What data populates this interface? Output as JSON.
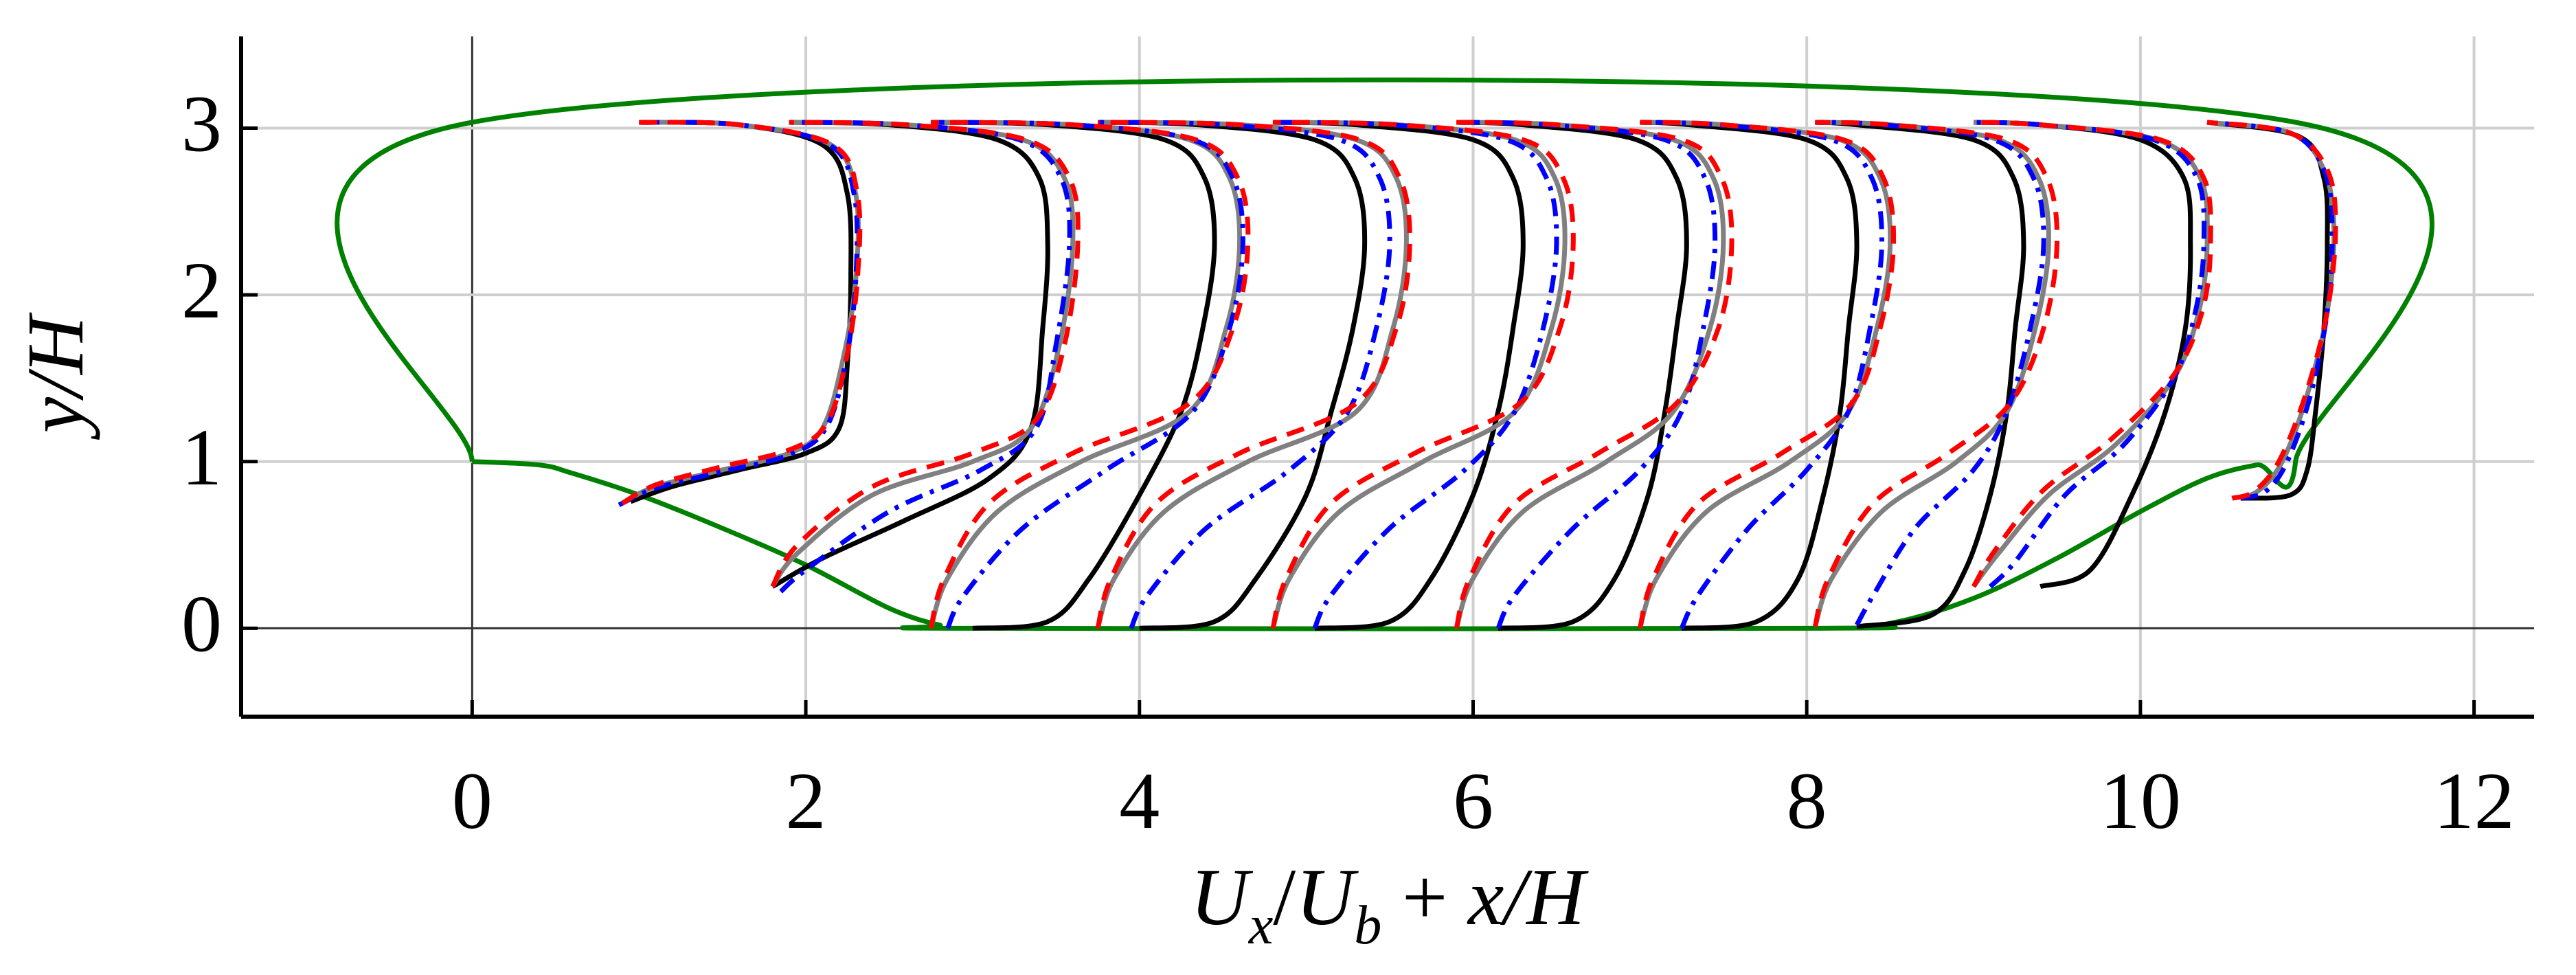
{
  "chart_data": {
    "type": "line",
    "xlabel": [
      {
        "text": "U",
        "italic": true
      },
      {
        "text": "x",
        "italic": true,
        "sub": true
      },
      {
        "text": "/",
        "italic": false
      },
      {
        "text": "U",
        "italic": true
      },
      {
        "text": "b",
        "italic": true,
        "sub": true
      },
      {
        "text": " + ",
        "italic": false
      },
      {
        "text": "x/H",
        "italic": true
      }
    ],
    "ylabel": "y/H",
    "xlim": [
      -1.385,
      12.36
    ],
    "ylim": [
      -0.53,
      3.55
    ],
    "xticks": [
      0,
      2,
      4,
      6,
      8,
      10,
      12
    ],
    "yticks": [
      0,
      1,
      2,
      3
    ],
    "grid": true,
    "zero_lines": true,
    "series": [
      {
        "color": "#008000",
        "style": "solid",
        "x": [
          0,
          0,
          10.93,
          10.93,
          10.7,
          10.4,
          10,
          9.5,
          9,
          8.5,
          8,
          3,
          2.8,
          2.5,
          2,
          1.5,
          1,
          0.6,
          0.4,
          0
        ],
        "values": [
          1,
          3.035,
          3.035,
          1,
          0.98,
          0.9,
          0.7,
          0.42,
          0.18,
          0.03,
          0,
          0,
          0.02,
          0.12,
          0.38,
          0.6,
          0.8,
          0.93,
          0.98,
          1
        ]
      },
      {
        "color": "#000000",
        "style": "solid",
        "x": [
          0.95,
          1.2,
          1.6,
          2.0,
          2.2,
          2.25,
          2.27,
          2.25,
          2.1,
          1.6,
          1.0,
          null,
          1.8,
          2.1,
          2.6,
          3.1,
          3.35,
          3.42,
          3.45,
          3.4,
          3.15,
          2.5,
          1.9,
          null,
          3.0,
          3.45,
          3.7,
          4.0,
          4.25,
          4.38,
          4.45,
          4.39,
          4.15,
          3.45,
          2.75,
          null,
          4.0,
          4.45,
          4.7,
          5.0,
          5.15,
          5.28,
          5.35,
          5.29,
          5.05,
          4.35,
          3.75,
          null,
          5.05,
          5.5,
          5.75,
          6.0,
          6.15,
          6.24,
          6.3,
          6.24,
          6.0,
          5.3,
          4.8,
          null,
          6.15,
          6.6,
          6.85,
          7.05,
          7.15,
          7.22,
          7.28,
          7.22,
          6.98,
          6.3,
          5.9,
          null,
          7.25,
          7.7,
          7.95,
          8.1,
          8.2,
          8.25,
          8.3,
          8.24,
          8.0,
          7.3,
          7.0,
          null,
          8.3,
          8.75,
          8.95,
          9.1,
          9.2,
          9.25,
          9.3,
          9.24,
          9.0,
          8.3,
          8.05,
          null,
          9.4,
          9.7,
          9.95,
          10.15,
          10.27,
          10.3,
          10.26,
          10.0,
          9.4,
          9.0,
          null,
          10.6,
          10.9,
          11.0,
          11.05,
          11.1,
          11.12,
          11.1,
          10.95,
          10.4
        ],
        "values": [
          0.76,
          0.85,
          0.95,
          1.05,
          1.2,
          1.6,
          2.1,
          2.6,
          2.9,
          3.02,
          3.035,
          null,
          0.25,
          0.42,
          0.65,
          0.9,
          1.2,
          1.8,
          2.3,
          2.7,
          2.93,
          3.02,
          3.035,
          null,
          0,
          0.04,
          0.3,
          0.8,
          1.3,
          1.8,
          2.3,
          2.7,
          2.93,
          3.02,
          3.035,
          null,
          0,
          0.04,
          0.3,
          0.8,
          1.3,
          1.8,
          2.3,
          2.7,
          2.93,
          3.02,
          3.035,
          null,
          0,
          0.04,
          0.3,
          0.8,
          1.3,
          1.8,
          2.3,
          2.7,
          2.93,
          3.02,
          3.035,
          null,
          0,
          0.04,
          0.3,
          0.8,
          1.3,
          1.8,
          2.3,
          2.7,
          2.93,
          3.02,
          3.035,
          null,
          0,
          0.04,
          0.3,
          0.8,
          1.3,
          1.8,
          2.3,
          2.7,
          2.93,
          3.02,
          3.035,
          null,
          0.01,
          0.08,
          0.35,
          0.8,
          1.3,
          1.8,
          2.3,
          2.7,
          2.93,
          3.02,
          3.035,
          null,
          0.25,
          0.35,
          0.8,
          1.3,
          1.8,
          2.3,
          2.7,
          2.93,
          3.02,
          3.035,
          null,
          0.78,
          0.8,
          0.95,
          1.3,
          1.8,
          2.3,
          2.7,
          2.95,
          3.035
        ]
      },
      {
        "color": "#808080",
        "style": "solid",
        "x": [
          0.9,
          1.1,
          1.5,
          1.9,
          2.1,
          2.22,
          2.3,
          2.3,
          2.15,
          1.6,
          1.0,
          null,
          1.8,
          1.95,
          2.4,
          3.0,
          3.35,
          3.52,
          3.6,
          3.55,
          3.3,
          2.6,
          1.9,
          null,
          2.75,
          2.85,
          3.15,
          3.65,
          4.3,
          4.52,
          4.6,
          4.54,
          4.3,
          3.6,
          2.75,
          null,
          3.75,
          3.85,
          4.15,
          4.65,
          5.3,
          5.52,
          5.6,
          5.54,
          5.3,
          4.6,
          3.75,
          null,
          4.8,
          4.9,
          5.2,
          5.7,
          6.25,
          6.47,
          6.55,
          6.49,
          6.25,
          5.55,
          4.8,
          null,
          5.9,
          6.0,
          6.3,
          6.8,
          7.2,
          7.42,
          7.5,
          7.44,
          7.2,
          6.5,
          5.9,
          null,
          7.0,
          7.1,
          7.4,
          7.9,
          8.25,
          8.42,
          8.5,
          8.44,
          8.2,
          7.5,
          7.0,
          null,
          8.05,
          8.15,
          8.45,
          8.9,
          9.2,
          9.37,
          9.45,
          9.39,
          9.15,
          8.5,
          8.05,
          null,
          9.0,
          9.15,
          9.45,
          9.85,
          10.2,
          10.35,
          10.4,
          10.36,
          10.1,
          9.4,
          9.0,
          null,
          10.55,
          10.7,
          10.85,
          11.0,
          11.12,
          11.16,
          11.1,
          10.9,
          10.4
        ],
        "values": [
          0.75,
          0.85,
          0.95,
          1.05,
          1.2,
          1.6,
          2.1,
          2.6,
          2.9,
          3.02,
          3.035,
          null,
          0.25,
          0.45,
          0.8,
          1.0,
          1.2,
          1.7,
          2.3,
          2.7,
          2.93,
          3.02,
          3.035,
          null,
          0,
          0.3,
          0.7,
          1.0,
          1.3,
          1.8,
          2.3,
          2.7,
          2.93,
          3.02,
          3.035,
          null,
          0,
          0.3,
          0.7,
          1.0,
          1.3,
          1.8,
          2.3,
          2.7,
          2.93,
          3.02,
          3.035,
          null,
          0,
          0.3,
          0.7,
          1.0,
          1.3,
          1.8,
          2.3,
          2.7,
          2.93,
          3.02,
          3.035,
          null,
          0,
          0.3,
          0.7,
          1.0,
          1.3,
          1.8,
          2.3,
          2.7,
          2.93,
          3.02,
          3.035,
          null,
          0,
          0.3,
          0.7,
          1.0,
          1.3,
          1.8,
          2.3,
          2.7,
          2.93,
          3.02,
          3.035,
          null,
          0.01,
          0.3,
          0.7,
          1.0,
          1.3,
          1.8,
          2.3,
          2.7,
          2.93,
          3.02,
          3.035,
          null,
          0.25,
          0.45,
          0.8,
          1.1,
          1.5,
          1.9,
          2.3,
          2.7,
          2.93,
          3.02,
          3.035,
          null,
          0.78,
          0.82,
          1.0,
          1.4,
          1.9,
          2.4,
          2.75,
          2.97,
          3.035
        ]
      },
      {
        "color": "#0000ff",
        "style": "dashdot",
        "x": [
          0.88,
          1.1,
          1.5,
          1.9,
          2.12,
          2.24,
          2.3,
          2.29,
          2.14,
          1.6,
          1.0,
          null,
          1.85,
          2.0,
          2.5,
          3.05,
          3.38,
          3.5,
          3.58,
          3.53,
          3.28,
          2.6,
          1.9,
          null,
          2.85,
          2.95,
          3.3,
          3.8,
          4.32,
          4.54,
          4.62,
          4.56,
          4.32,
          3.6,
          2.75,
          null,
          3.95,
          4.05,
          4.4,
          4.9,
          5.25,
          5.42,
          5.5,
          5.44,
          5.2,
          4.5,
          3.75,
          null,
          5.05,
          5.15,
          5.5,
          5.95,
          6.25,
          6.42,
          6.5,
          6.44,
          6.2,
          5.5,
          4.8,
          null,
          6.15,
          6.25,
          6.6,
          7.0,
          7.25,
          7.38,
          7.45,
          7.39,
          7.15,
          6.45,
          5.9,
          null,
          7.25,
          7.35,
          7.65,
          8.0,
          8.25,
          8.38,
          8.45,
          8.39,
          8.15,
          7.45,
          7.0,
          null,
          8.3,
          8.4,
          8.65,
          9.0,
          9.2,
          9.34,
          9.42,
          9.36,
          9.12,
          8.45,
          8.05,
          null,
          9.1,
          9.25,
          9.55,
          9.9,
          10.2,
          10.33,
          10.38,
          10.34,
          10.08,
          9.4,
          9.0,
          null,
          10.6,
          10.75,
          10.88,
          11.02,
          11.12,
          11.15,
          11.1,
          10.9,
          10.4
        ],
        "values": [
          0.74,
          0.84,
          0.94,
          1.04,
          1.2,
          1.6,
          2.1,
          2.6,
          2.9,
          3.02,
          3.035,
          null,
          0.22,
          0.35,
          0.7,
          0.95,
          1.2,
          1.7,
          2.3,
          2.7,
          2.93,
          3.02,
          3.035,
          null,
          0,
          0.2,
          0.6,
          0.95,
          1.3,
          1.8,
          2.3,
          2.7,
          2.93,
          3.02,
          3.035,
          null,
          0,
          0.2,
          0.6,
          0.95,
          1.3,
          1.8,
          2.3,
          2.7,
          2.93,
          3.02,
          3.035,
          null,
          0,
          0.2,
          0.6,
          0.95,
          1.3,
          1.8,
          2.3,
          2.7,
          2.93,
          3.02,
          3.035,
          null,
          0,
          0.2,
          0.6,
          0.95,
          1.3,
          1.8,
          2.3,
          2.7,
          2.93,
          3.02,
          3.035,
          null,
          0,
          0.2,
          0.6,
          0.95,
          1.3,
          1.8,
          2.3,
          2.7,
          2.93,
          3.02,
          3.035,
          null,
          0.02,
          0.2,
          0.6,
          0.95,
          1.3,
          1.8,
          2.3,
          2.7,
          2.93,
          3.02,
          3.035,
          null,
          0.25,
          0.4,
          0.8,
          1.1,
          1.5,
          1.9,
          2.3,
          2.7,
          2.93,
          3.02,
          3.035,
          null,
          0.78,
          0.82,
          1.0,
          1.4,
          1.9,
          2.4,
          2.75,
          2.97,
          3.035
        ]
      },
      {
        "color": "#ff0000",
        "style": "dashed",
        "x": [
          0.9,
          1.1,
          1.5,
          1.9,
          2.12,
          2.24,
          2.31,
          2.31,
          2.16,
          1.6,
          1.0,
          null,
          1.8,
          1.95,
          2.4,
          3.0,
          3.38,
          3.55,
          3.63,
          3.58,
          3.32,
          2.6,
          1.9,
          null,
          2.75,
          2.83,
          3.1,
          3.6,
          4.3,
          4.56,
          4.65,
          4.59,
          4.34,
          3.6,
          2.75,
          null,
          3.75,
          3.83,
          4.1,
          4.6,
          5.3,
          5.54,
          5.62,
          5.56,
          5.32,
          4.6,
          3.75,
          null,
          4.8,
          4.88,
          5.15,
          5.65,
          6.28,
          6.52,
          6.6,
          6.54,
          6.3,
          5.55,
          4.8,
          null,
          5.9,
          5.98,
          6.25,
          6.75,
          7.22,
          7.47,
          7.55,
          7.49,
          7.25,
          6.5,
          5.9,
          null,
          7.0,
          7.08,
          7.35,
          7.85,
          8.27,
          8.44,
          8.52,
          8.46,
          8.22,
          7.5,
          7.0,
          null,
          8.05,
          8.13,
          8.4,
          8.85,
          9.22,
          9.42,
          9.5,
          9.44,
          9.2,
          8.5,
          8.05,
          null,
          9.0,
          9.13,
          9.42,
          9.82,
          10.2,
          10.37,
          10.42,
          10.38,
          10.12,
          9.4,
          9.0,
          null,
          10.55,
          10.68,
          10.83,
          10.99,
          11.12,
          11.17,
          11.12,
          10.9,
          10.4
        ],
        "values": [
          0.75,
          0.86,
          0.97,
          1.07,
          1.22,
          1.6,
          2.1,
          2.6,
          2.9,
          3.02,
          3.035,
          null,
          0.25,
          0.5,
          0.85,
          1.05,
          1.25,
          1.7,
          2.3,
          2.7,
          2.93,
          3.02,
          3.035,
          null,
          0,
          0.3,
          0.75,
          1.05,
          1.35,
          1.8,
          2.3,
          2.7,
          2.93,
          3.02,
          3.035,
          null,
          0,
          0.3,
          0.75,
          1.05,
          1.35,
          1.8,
          2.3,
          2.7,
          2.93,
          3.02,
          3.035,
          null,
          0,
          0.3,
          0.75,
          1.05,
          1.35,
          1.8,
          2.3,
          2.7,
          2.93,
          3.02,
          3.035,
          null,
          0,
          0.3,
          0.75,
          1.05,
          1.35,
          1.8,
          2.3,
          2.7,
          2.93,
          3.02,
          3.035,
          null,
          0,
          0.3,
          0.75,
          1.05,
          1.35,
          1.8,
          2.3,
          2.7,
          2.93,
          3.02,
          3.035,
          null,
          0.01,
          0.3,
          0.75,
          1.05,
          1.35,
          1.8,
          2.3,
          2.7,
          2.93,
          3.02,
          3.035,
          null,
          0.25,
          0.47,
          0.83,
          1.13,
          1.52,
          1.9,
          2.3,
          2.7,
          2.93,
          3.02,
          3.035,
          null,
          0.78,
          0.82,
          1.0,
          1.4,
          1.9,
          2.4,
          2.75,
          2.97,
          3.035
        ]
      }
    ]
  }
}
